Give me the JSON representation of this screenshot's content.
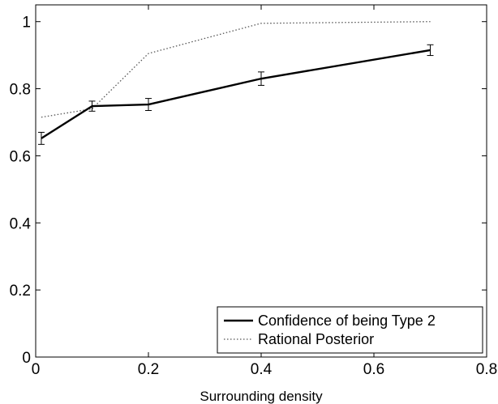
{
  "chart_data": {
    "type": "line",
    "title": "",
    "xlabel": "Surrounding density",
    "ylabel": "",
    "xlim": [
      0,
      0.8
    ],
    "ylim": [
      0,
      1.05
    ],
    "x_ticks": [
      0,
      0.2,
      0.4,
      0.6,
      0.8
    ],
    "x_tick_labels": [
      "0",
      "0.2",
      "0.4",
      "0.6",
      "0.8"
    ],
    "y_ticks": [
      0,
      0.2,
      0.4,
      0.6,
      0.8,
      1
    ],
    "y_tick_labels": [
      "0",
      "0.2",
      "0.4",
      "0.6",
      "0.8",
      "1"
    ],
    "grid": false,
    "legend_position": "bottom-right",
    "series": [
      {
        "name": "Confidence of being Type 2",
        "style": "solid",
        "color": "#000000",
        "x": [
          0.01,
          0.1,
          0.2,
          0.4,
          0.7
        ],
        "y": [
          0.652,
          0.748,
          0.753,
          0.83,
          0.915
        ],
        "error": [
          0.018,
          0.015,
          0.018,
          0.02,
          0.016
        ]
      },
      {
        "name": "Rational Posterior",
        "style": "dotted",
        "color": "#555555",
        "x": [
          0.01,
          0.1,
          0.2,
          0.4,
          0.7
        ],
        "y": [
          0.715,
          0.74,
          0.905,
          0.995,
          1.0
        ]
      }
    ]
  }
}
